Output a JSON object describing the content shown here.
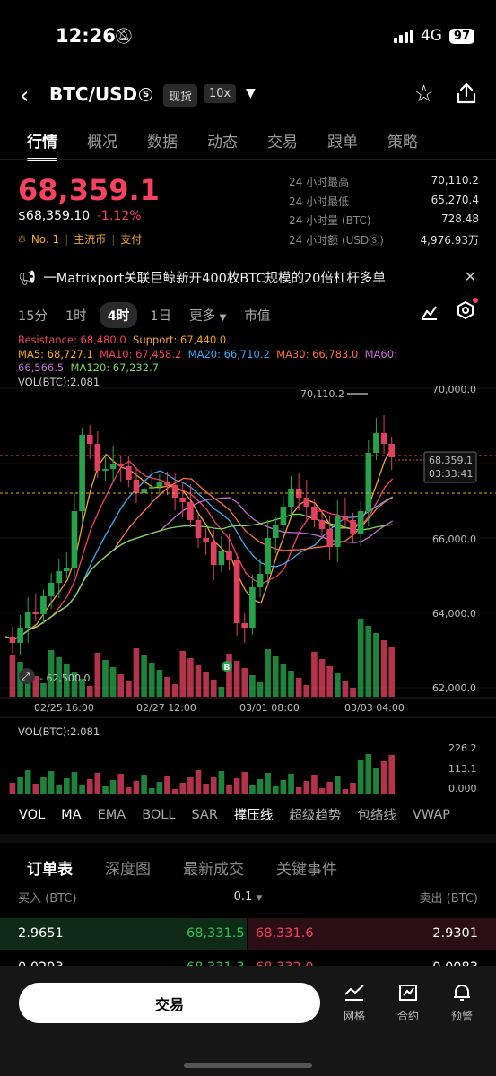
{
  "status": {
    "time": "12:26",
    "network": "4G",
    "battery": "97"
  },
  "header": {
    "pair": "BTC/USD",
    "pair_badge": "S",
    "market": "现货",
    "leverage": "10x"
  },
  "tabs": [
    "行情",
    "概况",
    "数据",
    "动态",
    "交易",
    "跟单",
    "策略"
  ],
  "price": {
    "last": "68,359.1",
    "usd": "$68,359.10",
    "change": "-1.12%"
  },
  "tags": [
    "No. 1",
    "主流币",
    "支付"
  ],
  "stats": [
    {
      "label": "24 小时最高",
      "value": "70,110.2"
    },
    {
      "label": "24 小时最低",
      "value": "65,270.4"
    },
    {
      "label": "24 小时量 (BTC)",
      "value": "728.48"
    },
    {
      "label": "24 小时额 (USDⓈ)",
      "value": "4,976.93万"
    }
  ],
  "news": "一Matrixport关联巨鲸新开400枚BTC规模的20倍杠杆多单",
  "timeframes": [
    "15分",
    "1时",
    "4时",
    "1日",
    "更多",
    "市值"
  ],
  "selected_timeframe": "4时",
  "indicators": {
    "resistance": "Resistance: 68,480.0",
    "support": "Support: 67,440.0",
    "ma5": "MA5: 68,727.1",
    "ma10": "MA10: 67,458.2",
    "ma20": "MA20: 66,710.2",
    "ma30": "MA30: 66,783.0",
    "ma60_label": "MA60:",
    "ma60_value": "66,566.5",
    "ma120": "MA120: 67,232.7",
    "vol": "VOL(BTC):2.081"
  },
  "chart_data": {
    "type": "candlestick",
    "y_ticks": [
      "70,000.0",
      "66,000.0",
      "64,000.0",
      "62,000.0"
    ],
    "x_ticks": [
      "02/25 16:00",
      "02/27 12:00",
      "03/01 08:00",
      "03/03 04:00"
    ],
    "high_label": "70,110.2",
    "low_label": "62,500.0",
    "current_price": "68,359.1",
    "countdown": "03:33:41",
    "marker": "B",
    "vol_ticks": [
      "226.2",
      "113.1",
      "0.000"
    ]
  },
  "colors": {
    "up": "#26a34a",
    "down": "#e0405e",
    "accent_red": "#f4425f",
    "accent_orange": "#f5a623"
  },
  "indicator_tabs": [
    "VOL",
    "MA",
    "EMA",
    "BOLL",
    "SAR",
    "撑压线",
    "超级趋势",
    "包络线",
    "VWAP"
  ],
  "orderbook": {
    "tabs": [
      "订单表",
      "深度图",
      "最新成交",
      "关键事件"
    ],
    "buy_header": "买入 (BTC)",
    "precision": "0.1",
    "sell_header": "卖出 (BTC)",
    "rows": [
      {
        "buy_qty": "2.9651",
        "buy_price": "68,331.5",
        "sell_price": "68,331.6",
        "sell_qty": "2.9301"
      },
      {
        "buy_qty": "0.0293",
        "buy_price": "68,331.3",
        "sell_price": "68,332.0",
        "sell_qty": "0.0083"
      }
    ]
  },
  "bottom": {
    "trade": "交易",
    "grid": "网格",
    "contract": "合约",
    "alert": "预警"
  }
}
